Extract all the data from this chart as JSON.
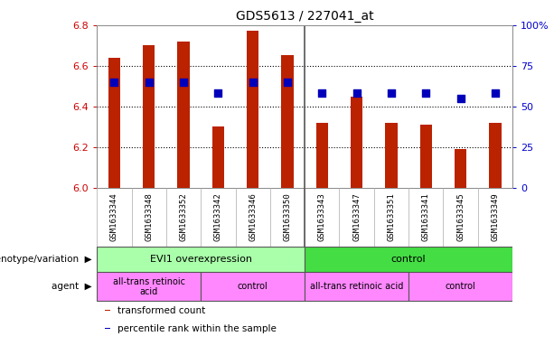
{
  "title": "GDS5613 / 227041_at",
  "samples": [
    "GSM1633344",
    "GSM1633348",
    "GSM1633352",
    "GSM1633342",
    "GSM1633346",
    "GSM1633350",
    "GSM1633343",
    "GSM1633347",
    "GSM1633351",
    "GSM1633341",
    "GSM1633345",
    "GSM1633349"
  ],
  "bar_values": [
    6.64,
    6.7,
    6.72,
    6.3,
    6.77,
    6.65,
    6.32,
    6.45,
    6.32,
    6.31,
    6.19,
    6.32
  ],
  "bar_base": 6.0,
  "percentile_values": [
    65,
    65,
    65,
    58,
    65,
    65,
    58,
    58,
    58,
    58,
    55,
    58
  ],
  "bar_color": "#bb2200",
  "dot_color": "#0000bb",
  "ylim_left": [
    6.0,
    6.8
  ],
  "ylim_right": [
    0,
    100
  ],
  "yticks_left": [
    6.0,
    6.2,
    6.4,
    6.6,
    6.8
  ],
  "yticks_right": [
    0,
    25,
    50,
    75,
    100
  ],
  "ytick_labels_right": [
    "0",
    "25",
    "50",
    "75",
    "100%"
  ],
  "grid_values": [
    6.2,
    6.4,
    6.6
  ],
  "group_separator": 6,
  "genotype_groups": [
    {
      "label": "EVI1 overexpression",
      "start": 0,
      "end": 6,
      "color": "#aaffaa"
    },
    {
      "label": "control",
      "start": 6,
      "end": 12,
      "color": "#44dd44"
    }
  ],
  "agent_groups": [
    {
      "label": "all-trans retinoic\nacid",
      "start": 0,
      "end": 3,
      "color": "#ff88ff"
    },
    {
      "label": "control",
      "start": 3,
      "end": 6,
      "color": "#ff88ff"
    },
    {
      "label": "all-trans retinoic acid",
      "start": 6,
      "end": 9,
      "color": "#ff88ff"
    },
    {
      "label": "control",
      "start": 9,
      "end": 12,
      "color": "#ff88ff"
    }
  ],
  "legend_items": [
    {
      "label": "transformed count",
      "color": "#bb2200"
    },
    {
      "label": "percentile rank within the sample",
      "color": "#0000bb"
    }
  ],
  "left_label_genotype": "genotype/variation",
  "left_label_agent": "agent",
  "bar_width": 0.35,
  "dot_size": 30,
  "bg_color": "#ffffff",
  "plot_bg_color": "#ffffff",
  "grid_color": "#000000",
  "tick_label_color_left": "#cc0000",
  "tick_label_color_right": "#0000cc",
  "xtick_bg_color": "#d0d0d0",
  "separator_color": "#555555"
}
